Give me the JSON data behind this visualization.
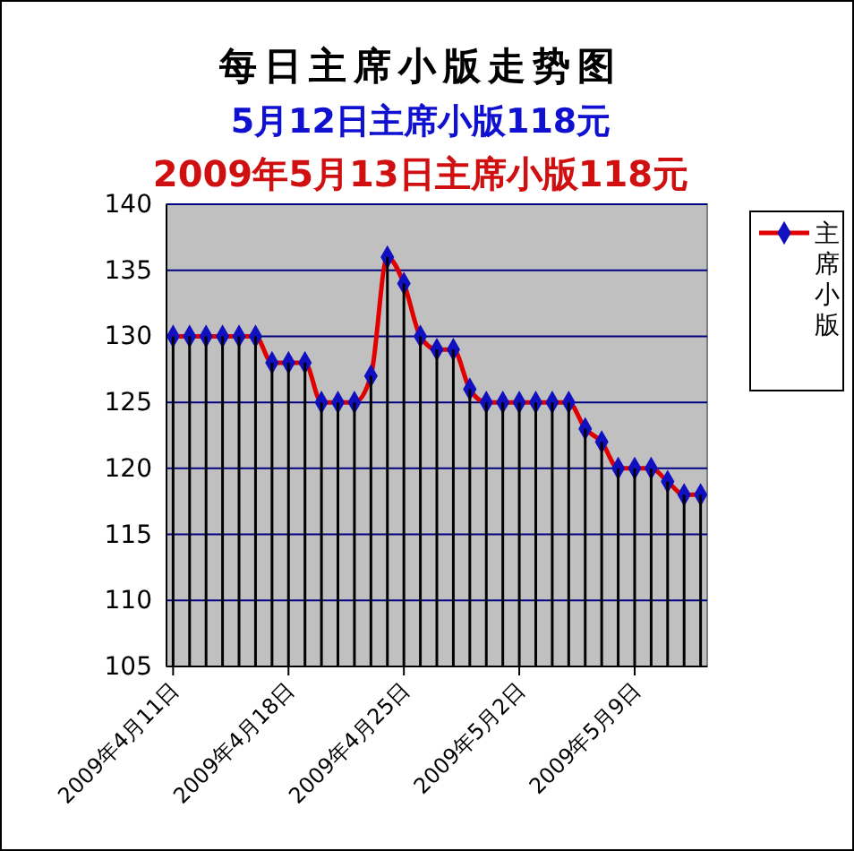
{
  "chart_data": {
    "type": "line",
    "title": "每日主席小版走势图",
    "subtitle": "5月12日主席小版118元",
    "annotations": [
      "2009年5月13日主席小版118元"
    ],
    "categories": [
      "2009年4月11日",
      null,
      null,
      null,
      null,
      null,
      null,
      "2009年4月18日",
      null,
      null,
      null,
      null,
      null,
      null,
      "2009年4月25日",
      null,
      null,
      null,
      null,
      null,
      null,
      "2009年5月2日",
      null,
      null,
      null,
      null,
      null,
      null,
      "2009年5月9日",
      null,
      null,
      null,
      null
    ],
    "series": [
      {
        "type": "bar",
        "color": "#000000",
        "values": [
          130,
          130,
          130,
          130,
          130,
          130,
          128,
          128,
          128,
          125,
          125,
          125,
          127,
          136,
          134,
          130,
          129,
          129,
          126,
          125,
          125,
          125,
          125,
          125,
          125,
          123,
          122,
          120,
          120,
          120,
          119,
          118,
          118
        ]
      },
      {
        "name": "主席小版",
        "color": "#e00000",
        "values": [
          130,
          130,
          130,
          130,
          130,
          130,
          128,
          128,
          128,
          125,
          125,
          125,
          127,
          136,
          134,
          130,
          129,
          129,
          126,
          125,
          125,
          125,
          125,
          125,
          125,
          123,
          122,
          120,
          120,
          120,
          119,
          118,
          118
        ]
      }
    ],
    "ylim": [
      105,
      140
    ],
    "yticks": [
      105,
      110,
      115,
      120,
      125,
      130,
      135,
      140
    ],
    "grid": "y",
    "legend": "right",
    "marker": "diamond",
    "line_style": "solid"
  }
}
